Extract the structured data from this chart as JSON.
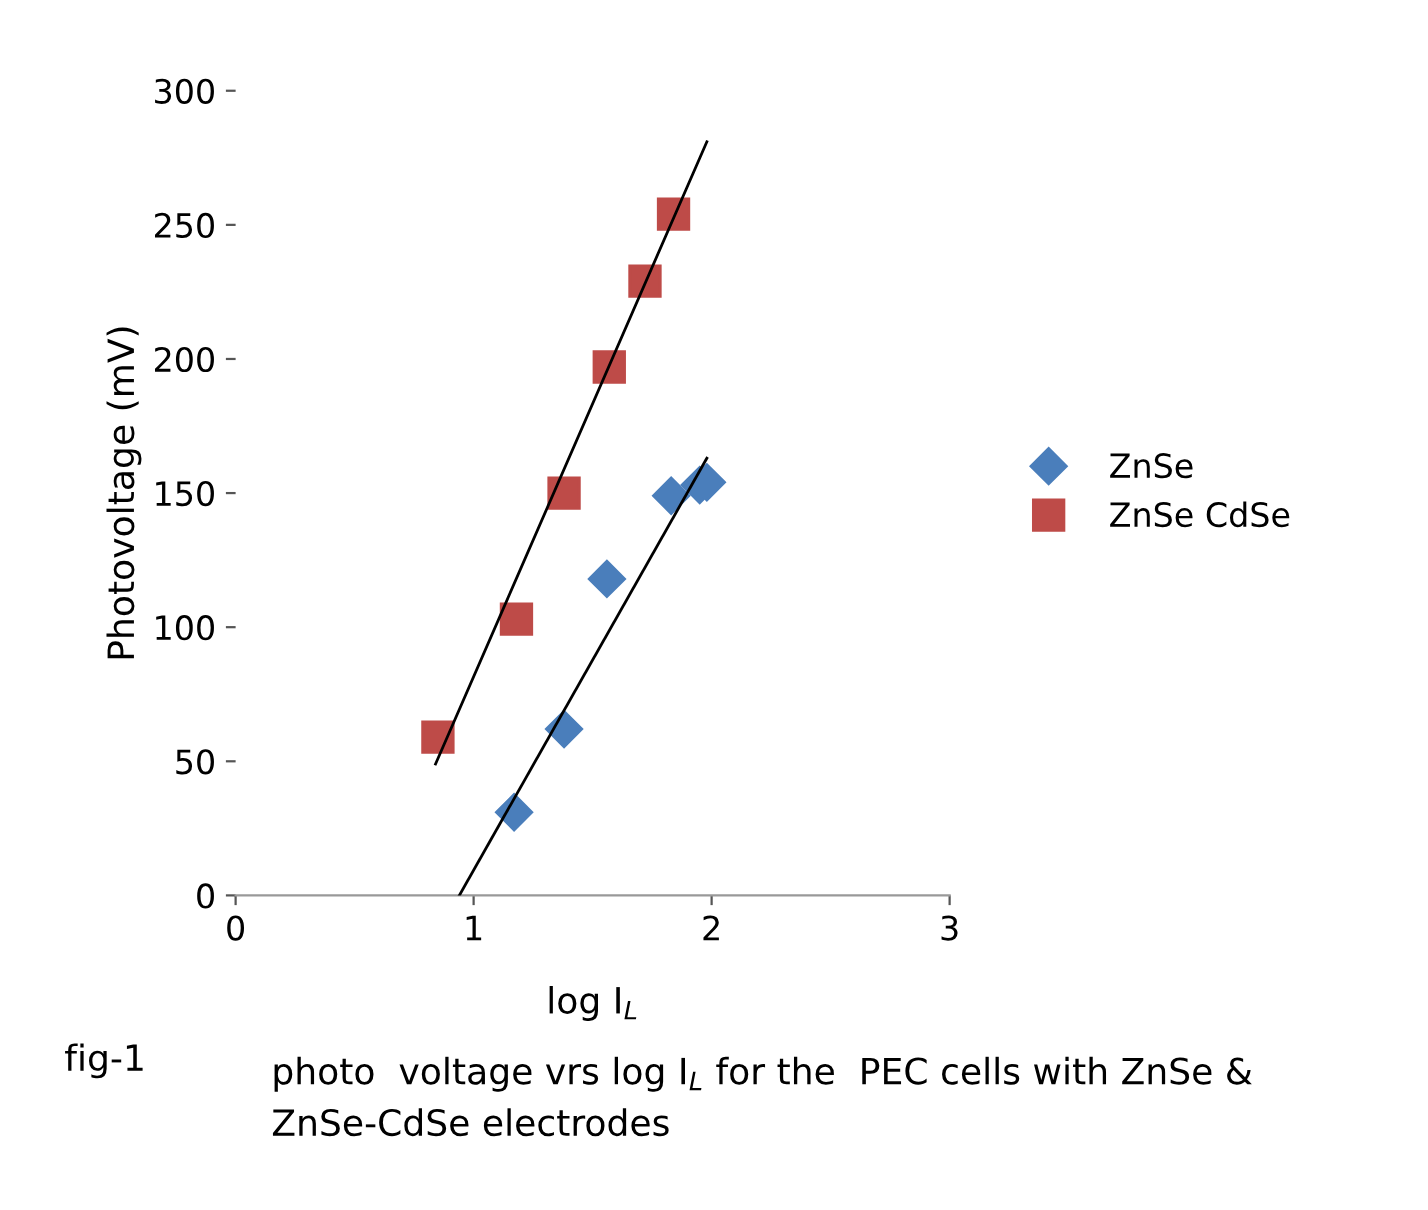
{
  "chart_data": {
    "type": "scatter",
    "xlabel": "log I$_{L}$",
    "ylabel": "Photovoltage (mV)",
    "annotations": [
      "fig-1",
      "photo  voltage vrs log I$_{L}$ for the  PEC cells with ZnSe & ZnSe-CdSe electrodes"
    ],
    "series": [
      {
        "name": "ZnSe",
        "color": "#4a7ebb",
        "marker": "diamond",
        "x": [
          1.17,
          1.38,
          1.56,
          1.83,
          1.95,
          1.98
        ],
        "values": [
          31,
          62,
          118,
          149,
          153,
          154
        ]
      },
      {
        "name": "ZnSe CdSe",
        "color": "#be4b48",
        "marker": "square",
        "x": [
          0.85,
          1.18,
          1.38,
          1.57,
          1.72,
          1.84
        ],
        "values": [
          59,
          103,
          150,
          197,
          229,
          254
        ]
      },
      {
        "type": "line",
        "color": "#000000",
        "marker": "none",
        "x": [
          0.94,
          1.98
        ],
        "values": [
          0,
          163
        ]
      },
      {
        "type": "line",
        "color": "#000000",
        "marker": "none",
        "x": [
          0.84,
          1.98
        ],
        "values": [
          49,
          281
        ]
      }
    ],
    "xlim": [
      0,
      3
    ],
    "xticks": [
      0,
      1,
      2,
      3
    ],
    "ylim": [
      0,
      300
    ],
    "yticks": [
      0,
      50,
      100,
      150,
      200,
      250,
      300
    ],
    "grid": false,
    "legend": "right"
  }
}
